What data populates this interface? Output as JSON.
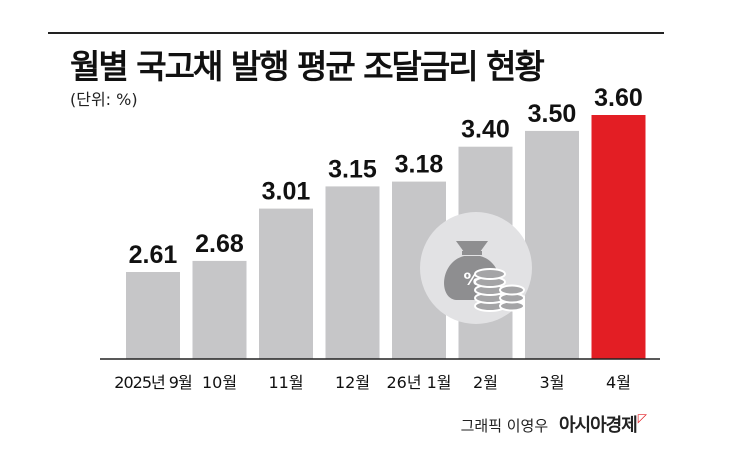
{
  "chart_data": {
    "type": "bar",
    "title": "월별 국고채 발행 평균 조달금리 현황",
    "unit_label": "(단위: %)",
    "categories": [
      "2025년 9월",
      "10월",
      "11월",
      "12월",
      "26년 1월",
      "2월",
      "3월",
      "4월"
    ],
    "values": [
      2.61,
      2.68,
      3.01,
      3.15,
      3.18,
      3.4,
      3.5,
      3.6
    ],
    "value_labels": [
      "2.61",
      "2.68",
      "3.01",
      "3.15",
      "3.18",
      "3.40",
      "3.50",
      "3.60"
    ],
    "highlight_index": 7,
    "colors": {
      "bar": "#c6c6c8",
      "highlight": "#e31e24",
      "icon_circle": "#e2e2e4",
      "icon_fill": "#8e8e90"
    },
    "icon": "money-bag-coins-icon",
    "grid": false,
    "xlabel": "",
    "ylabel": ""
  },
  "credit": {
    "text": "그래픽 이영우",
    "brand": "아시아경제"
  }
}
